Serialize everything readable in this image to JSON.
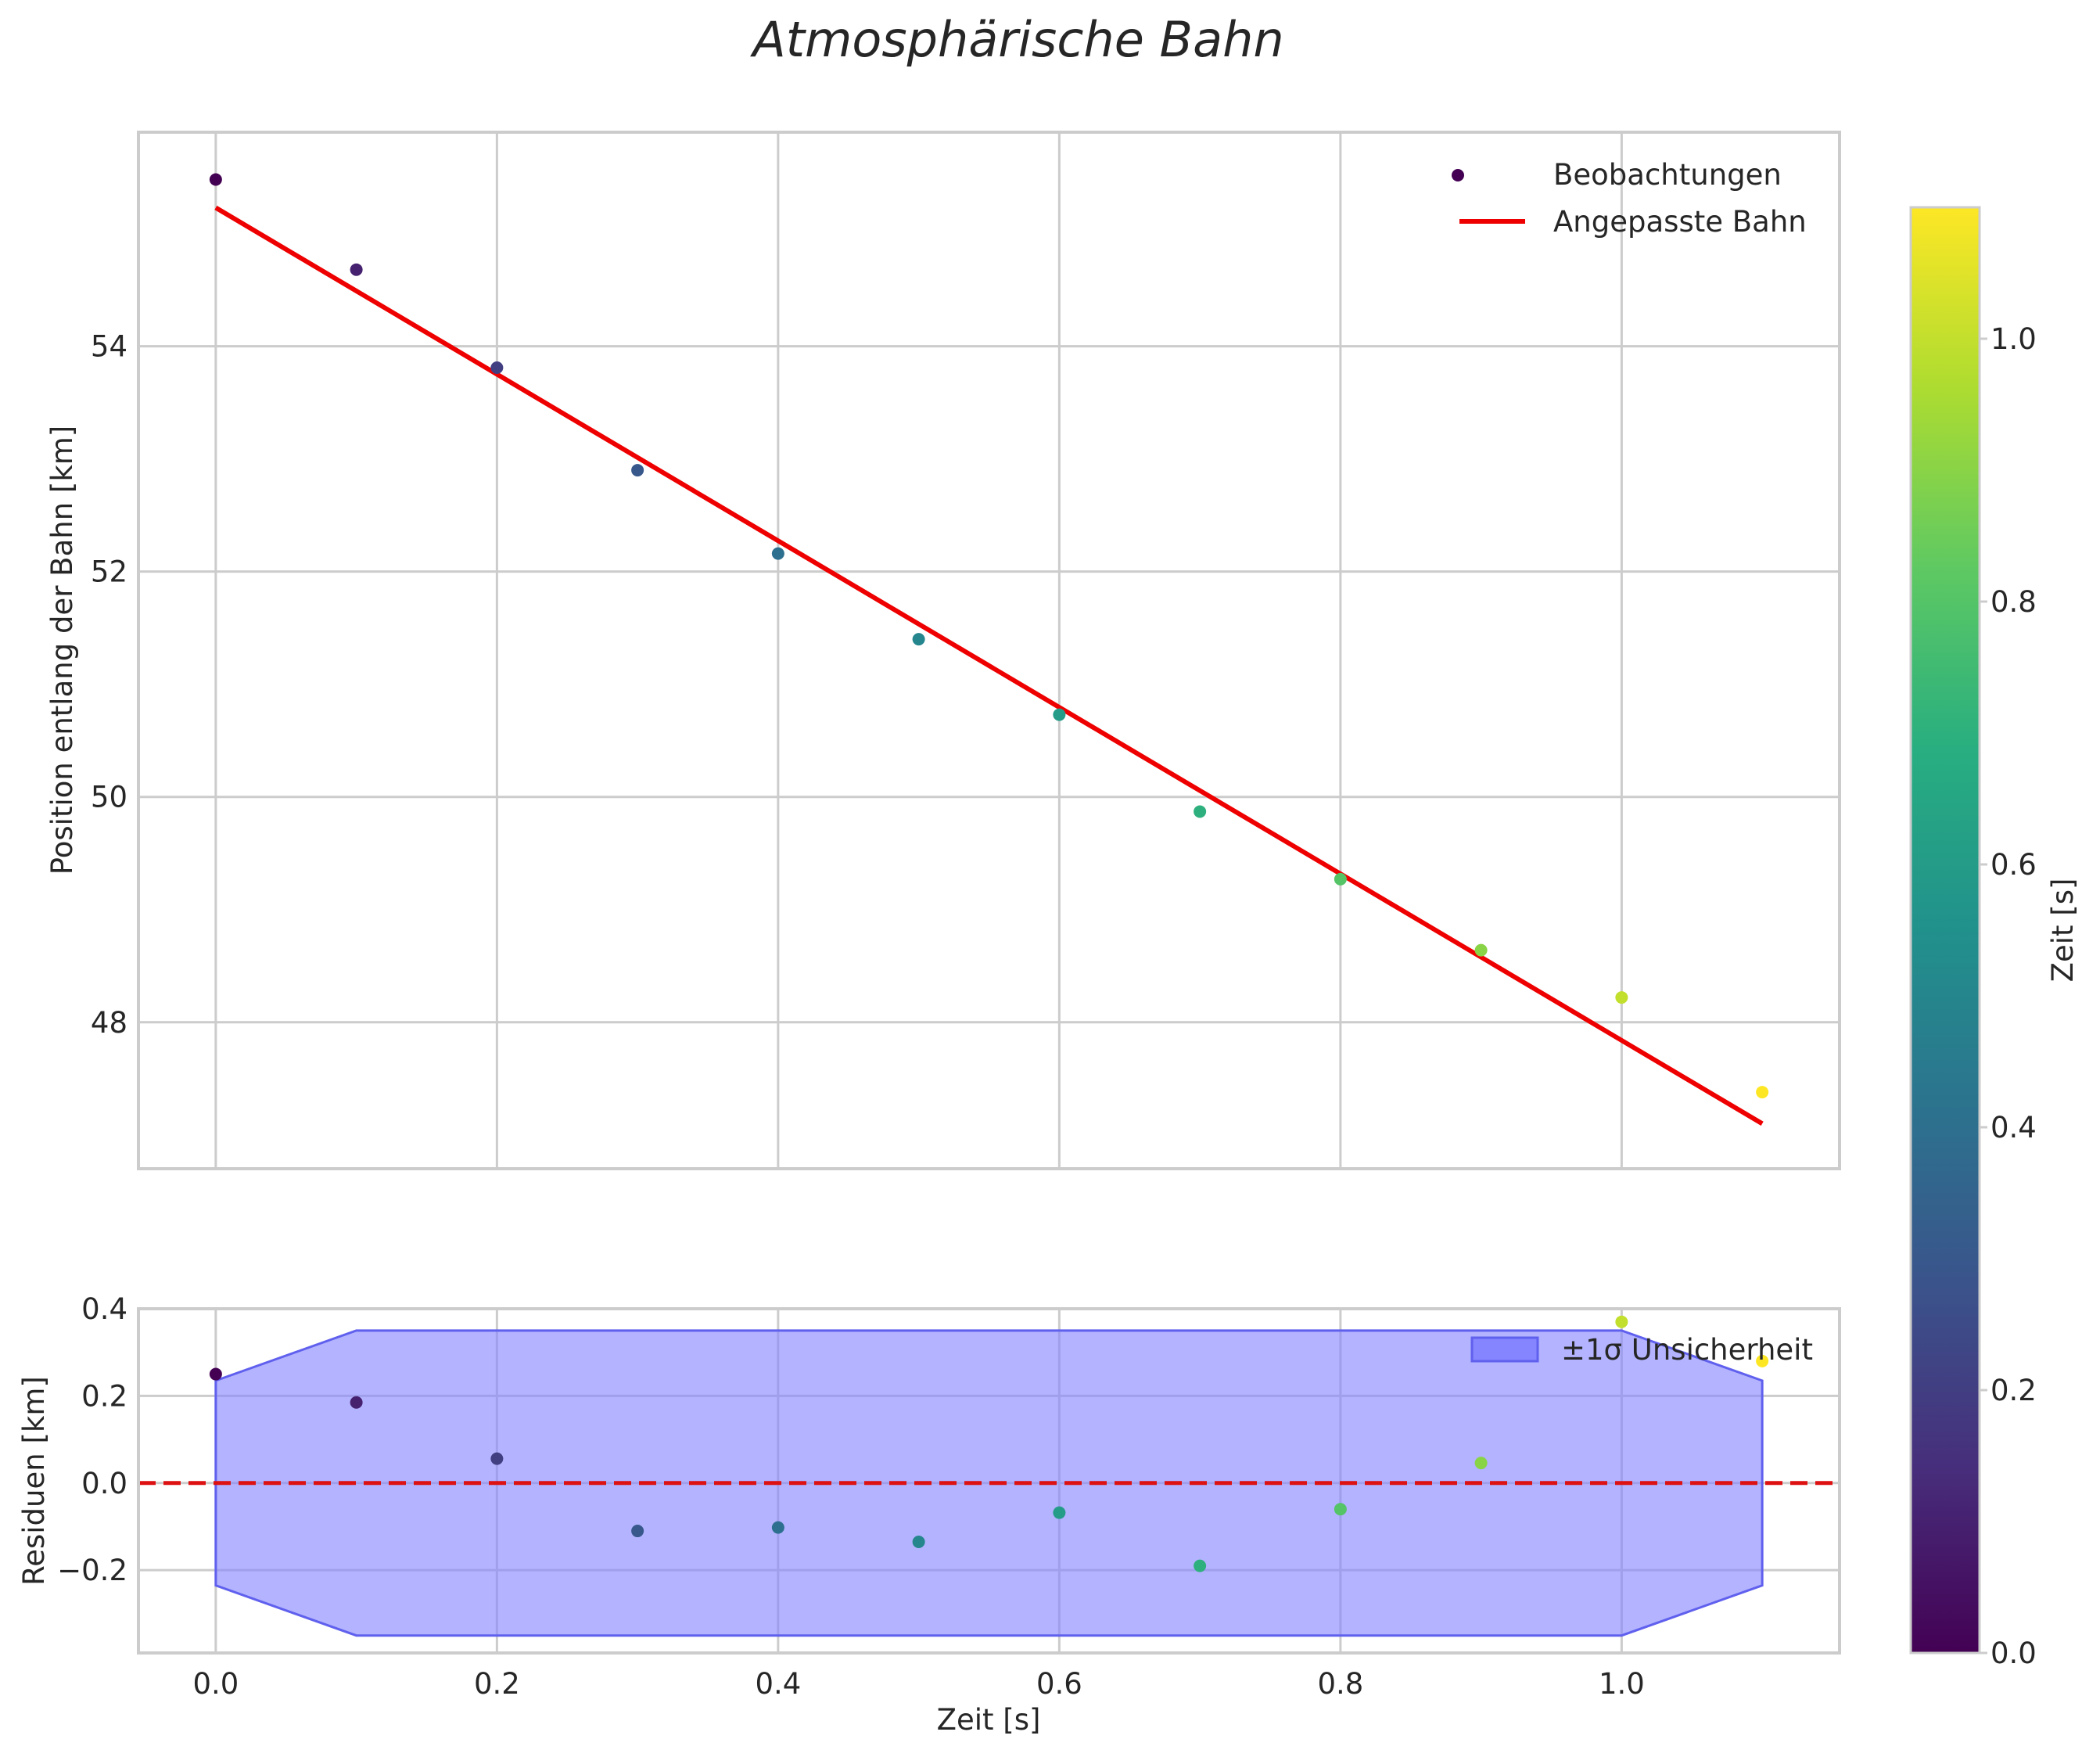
{
  "chart_data": {
    "type": "scatter",
    "title": "Atmosphärische Bahn",
    "colors": {
      "fit_line": "#ee0000",
      "band_fill": "#8080ff",
      "band_edge": "#6060ee",
      "zero_line": "#dd1111",
      "grid": "#cccccc"
    },
    "main": {
      "ylabel": "Position entlang der Bahn [km]",
      "xlim": [
        -0.055,
        1.155
      ],
      "ylim": [
        46.7,
        55.9
      ],
      "xticks": [
        0.0,
        0.2,
        0.4,
        0.6,
        0.8,
        1.0
      ],
      "yticks": [
        48,
        50,
        52,
        54
      ],
      "ytick_labels": [
        "48",
        "50",
        "52",
        "54"
      ],
      "legend": [
        "Beobachtungen",
        "Angepasste Bahn"
      ],
      "series": [
        {
          "name": "Beobachtungen",
          "x": [
            0.0,
            0.1,
            0.2,
            0.3,
            0.4,
            0.5,
            0.6,
            0.7,
            0.8,
            0.9,
            1.0,
            1.1
          ],
          "y": [
            55.48,
            54.68,
            53.81,
            52.9,
            52.16,
            51.4,
            50.73,
            49.87,
            49.27,
            48.64,
            48.22,
            47.38
          ]
        },
        {
          "name": "Angepasste Bahn",
          "x": [
            0.0,
            1.1
          ],
          "y": [
            55.23,
            47.1
          ]
        }
      ]
    },
    "residuals": {
      "ylabel": "Residuen [km]",
      "xlabel": "Zeit [s]",
      "xlim": [
        -0.055,
        1.155
      ],
      "ylim": [
        -0.39,
        0.4
      ],
      "xticks": [
        0.0,
        0.2,
        0.4,
        0.6,
        0.8,
        1.0
      ],
      "xtick_labels": [
        "0.0",
        "0.2",
        "0.4",
        "0.6",
        "0.8",
        "1.0"
      ],
      "yticks": [
        -0.2,
        0.0,
        0.2,
        0.4
      ],
      "ytick_labels": [
        "−0.2",
        "0.0",
        "0.2",
        "0.4"
      ],
      "legend": [
        "±1σ Unsicherheit"
      ],
      "x": [
        0.0,
        0.1,
        0.2,
        0.3,
        0.4,
        0.5,
        0.6,
        0.7,
        0.8,
        0.9,
        1.0,
        1.1
      ],
      "values": [
        0.25,
        0.185,
        0.056,
        -0.11,
        -0.102,
        -0.135,
        -0.068,
        -0.19,
        -0.06,
        0.046,
        0.37,
        0.28
      ],
      "band_upper": [
        0.235,
        0.35,
        0.35,
        0.35,
        0.35,
        0.35,
        0.35,
        0.35,
        0.35,
        0.35,
        0.35,
        0.235
      ],
      "band_lower": [
        -0.235,
        -0.35,
        -0.35,
        -0.35,
        -0.35,
        -0.35,
        -0.35,
        -0.35,
        -0.35,
        -0.35,
        -0.35,
        -0.235
      ]
    },
    "colorbar": {
      "label": "Zeit [s]",
      "range": [
        0.0,
        1.1
      ],
      "ticks": [
        0.0,
        0.2,
        0.4,
        0.6,
        0.8,
        1.0
      ],
      "tick_labels": [
        "0.0",
        "0.2",
        "0.4",
        "0.6",
        "0.8",
        "1.0"
      ],
      "colormap": "viridis"
    }
  }
}
